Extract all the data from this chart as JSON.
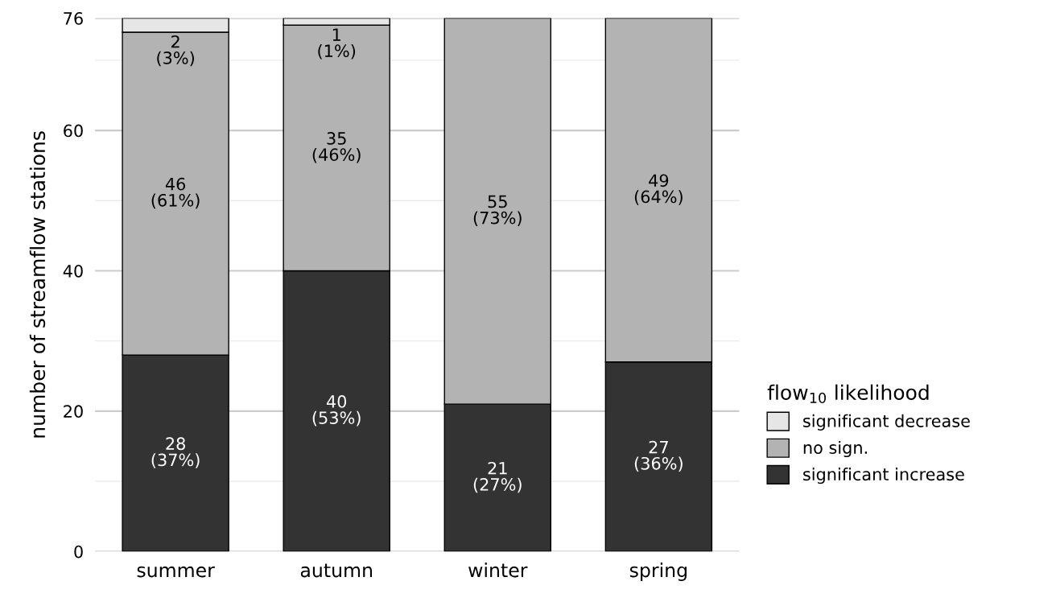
{
  "chart_data": {
    "type": "bar",
    "stacked": true,
    "ylabel": "number of streamflow stations",
    "legend_title": "flow$_{10}$ likelihood",
    "legend": "right",
    "grid": "y",
    "categories": [
      "summer",
      "autumn",
      "winter",
      "spring"
    ],
    "ylim": [
      0,
      76
    ],
    "yticks": [
      0,
      {
        "value": 10,
        "label": null
      },
      20,
      {
        "value": 30,
        "label": null
      },
      40,
      {
        "value": 50,
        "label": null
      },
      60,
      {
        "value": 70,
        "label": null
      },
      76
    ],
    "series": [
      {
        "name": "significant increase",
        "color": "#333333",
        "values": [
          28,
          40,
          21,
          27
        ],
        "value_labels": [
          "28\n(37%)",
          "40\n(53%)",
          "21\n(27%)",
          "27\n(36%)"
        ]
      },
      {
        "name": "no sign.",
        "color": "#b3b3b3",
        "values": [
          46,
          35,
          55,
          49
        ],
        "value_labels": [
          "46\n(61%)",
          "35\n(46%)",
          "55\n(73%)",
          "49\n(64%)"
        ]
      },
      {
        "name": "significant decrease",
        "color": "#e6e6e6",
        "values": [
          2,
          1,
          null,
          null
        ],
        "value_labels": [
          "2\n(3%)",
          "1\n(1%)",
          null,
          null
        ]
      }
    ]
  }
}
